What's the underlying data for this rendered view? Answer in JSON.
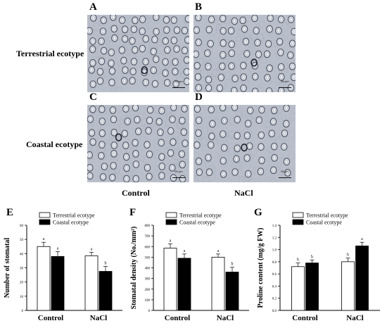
{
  "panels": {
    "A": "A",
    "B": "B",
    "C": "C",
    "D": "D",
    "E": "E",
    "F": "F",
    "G": "G"
  },
  "row_labels": [
    "Terrestrial ecotype",
    "Coastal ecotype"
  ],
  "column_labels": [
    "Control",
    "NaCl"
  ],
  "scale_bar_label": "50 μm",
  "colors": {
    "micro_bg": "#b9bfca",
    "cell": "#dfe3ea",
    "guard_outline": "#565b6a",
    "pore": "#1e212b",
    "bar_terrestrial": "#ffffff",
    "bar_coastal": "#000000"
  },
  "chart_data": [
    {
      "panel": "E",
      "type": "bar",
      "categories": [
        "Control",
        "NaCl"
      ],
      "series": [
        {
          "name": "Terrestrial ecotype",
          "values": [
            45,
            38.5
          ],
          "errors": [
            3,
            2.5
          ],
          "letters": [
            "a",
            "a"
          ]
        },
        {
          "name": "Coastal ecotype",
          "values": [
            38,
            27.5
          ],
          "errors": [
            3.5,
            3.5
          ],
          "letters": [
            "a",
            "b"
          ]
        }
      ],
      "ylabel": "Number of stomatal",
      "ylim": [
        0,
        60
      ],
      "yticks": [
        "0",
        "10",
        "20",
        "30",
        "40",
        "50",
        "60"
      ],
      "legend": "top"
    },
    {
      "panel": "F",
      "type": "bar",
      "categories": [
        "Control",
        "NaCl"
      ],
      "series": [
        {
          "name": "Terrestrial ecotype",
          "values": [
            585,
            500
          ],
          "errors": [
            40,
            30
          ],
          "letters": [
            "a",
            "a"
          ]
        },
        {
          "name": "Coastal ecotype",
          "values": [
            490,
            360
          ],
          "errors": [
            40,
            45
          ],
          "letters": [
            "a",
            "b"
          ]
        }
      ],
      "ylabel": "Stomatal density (No./mm²)",
      "ylim": [
        0,
        800
      ],
      "yticks": [
        "0",
        "100",
        "200",
        "300",
        "400",
        "500",
        "600",
        "700",
        "800"
      ],
      "legend": "top"
    },
    {
      "panel": "G",
      "type": "bar",
      "categories": [
        "Control",
        "NaCl"
      ],
      "series": [
        {
          "name": "Terrestrial ecotype",
          "values": [
            0.72,
            0.8
          ],
          "errors": [
            0.06,
            0.06
          ],
          "letters": [
            "b",
            "b"
          ]
        },
        {
          "name": "Coastal ecotype",
          "values": [
            0.78,
            1.06
          ],
          "errors": [
            0.05,
            0.06
          ],
          "letters": [
            "b",
            "a"
          ]
        }
      ],
      "ylabel": "Proline content (mg/g FW)",
      "ylim": [
        0,
        1.4
      ],
      "yticks": [
        "0.0",
        "0.2",
        "0.4",
        "0.6",
        "0.8",
        "1.0",
        "1.2",
        "1.4"
      ],
      "legend": "top"
    }
  ]
}
